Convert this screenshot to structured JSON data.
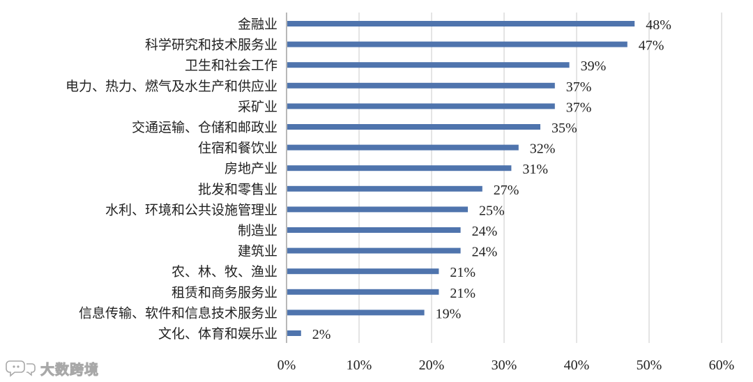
{
  "chart_data": {
    "type": "bar",
    "orientation": "horizontal",
    "categories": [
      "金融业",
      "科学研究和技术服务业",
      "卫生和社会工作",
      "电力、热力、燃气及水生产和供应业",
      "采矿业",
      "交通运输、仓储和邮政业",
      "住宿和餐饮业",
      "房地产业",
      "批发和零售业",
      "水利、环境和公共设施管理业",
      "制造业",
      "建筑业",
      "农、林、牧、渔业",
      "租赁和商务服务业",
      "信息传输、软件和信息技术服务业",
      "文化、体育和娱乐业"
    ],
    "values": [
      48,
      47,
      39,
      37,
      37,
      35,
      32,
      31,
      27,
      25,
      24,
      24,
      21,
      21,
      19,
      2
    ],
    "value_labels": [
      "48%",
      "47%",
      "39%",
      "37%",
      "37%",
      "35%",
      "32%",
      "31%",
      "27%",
      "25%",
      "24%",
      "24%",
      "21%",
      "21%",
      "19%",
      "2%"
    ],
    "title": "",
    "xlabel": "",
    "ylabel": "",
    "xlim": [
      0,
      60
    ],
    "x_ticks": [
      0,
      10,
      20,
      30,
      40,
      50,
      60
    ],
    "x_tick_labels": [
      "0%",
      "10%",
      "20%",
      "30%",
      "40%",
      "50%",
      "60%"
    ],
    "grid": "vertical",
    "legend": "none",
    "bar_color": "#4f74ad"
  },
  "watermark": {
    "text": "大数跨境",
    "icon": "speech-bubble-logo-icon"
  }
}
